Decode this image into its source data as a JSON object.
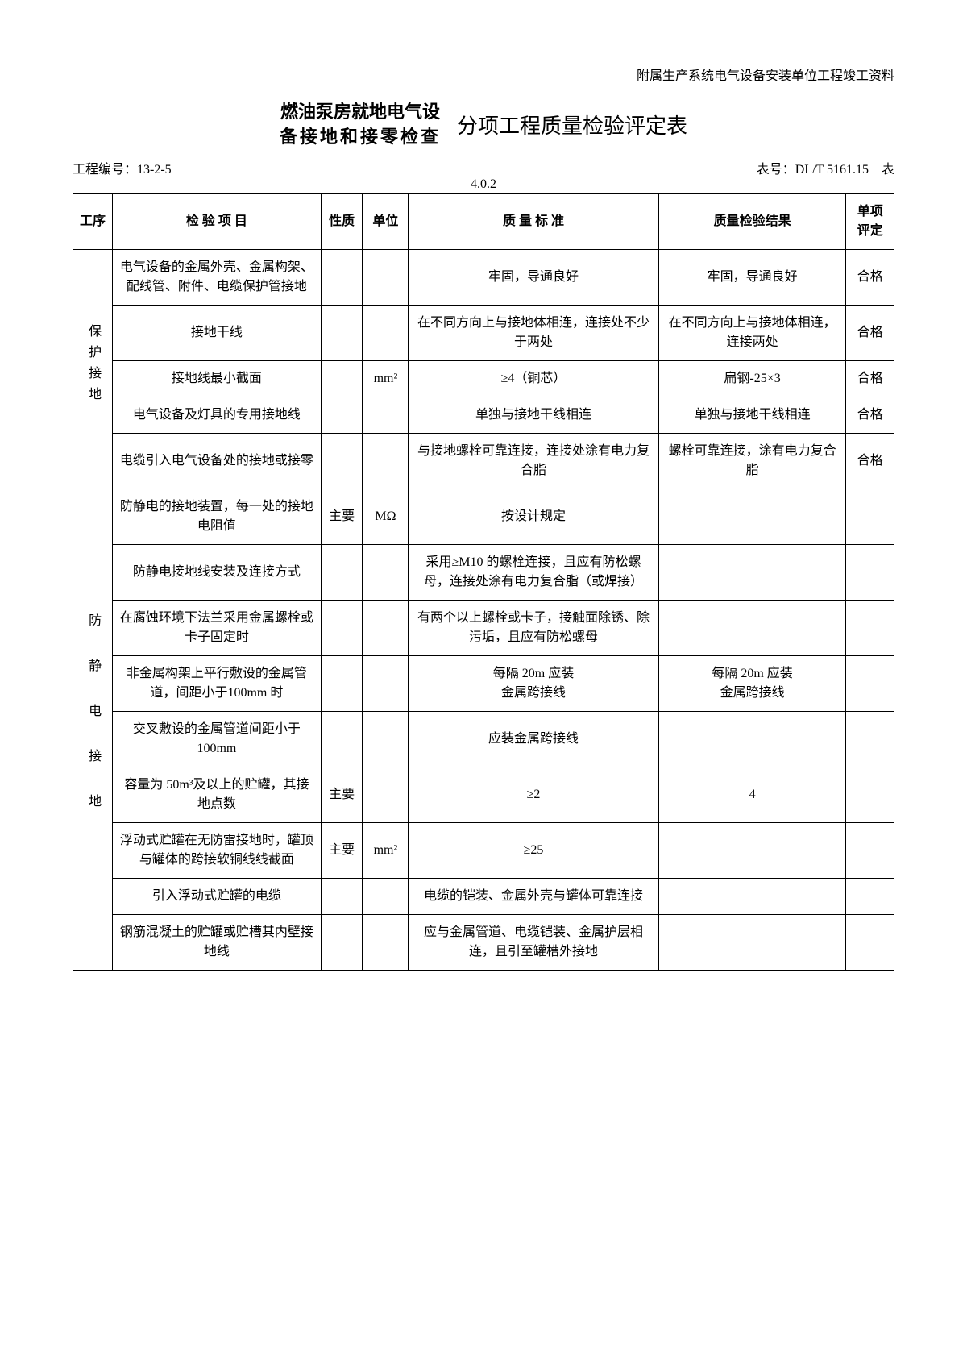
{
  "header_right": "附属生产系统电气设备安装单位工程竣工资料",
  "title_left_line1": "燃油泵房就地电气设",
  "title_left_line2": "备接地和接零检查",
  "title_right": "分项工程质量检验评定表",
  "project_no_label": "工程编号：13-2-5",
  "form_no_label": "表号：DL/T 5161.15　表",
  "table_ref": "4.0.2",
  "columns": {
    "seq": "工序",
    "item": "检 验 项 目",
    "nature": "性质",
    "unit": "单位",
    "standard": "质 量 标 准",
    "result": "质量检验结果",
    "eval": "单项评定"
  },
  "group1_label": "保护接地",
  "group2_label": "防静电接地",
  "rows": [
    {
      "item": "电气设备的金属外壳、金属构架、配线管、附件、电缆保护管接地",
      "nature": "",
      "unit": "",
      "standard": "牢固，导通良好",
      "result": "牢固，导通良好",
      "eval": "合格"
    },
    {
      "item": "接地干线",
      "nature": "",
      "unit": "",
      "standard": "在不同方向上与接地体相连，连接处不少于两处",
      "result": "在不同方向上与接地体相连，连接两处",
      "eval": "合格"
    },
    {
      "item": "接地线最小截面",
      "nature": "",
      "unit": "mm²",
      "standard": "≥4（铜芯）",
      "result": "扁钢-25×3",
      "eval": "合格"
    },
    {
      "item": "电气设备及灯具的专用接地线",
      "nature": "",
      "unit": "",
      "standard": "单独与接地干线相连",
      "result": "单独与接地干线相连",
      "eval": "合格"
    },
    {
      "item": "电缆引入电气设备处的接地或接零",
      "nature": "",
      "unit": "",
      "standard": "与接地螺栓可靠连接，连接处涂有电力复合脂",
      "result": "螺栓可靠连接，涂有电力复合脂",
      "eval": "合格"
    },
    {
      "item": "防静电的接地装置，每一处的接地电阻值",
      "nature": "主要",
      "unit": "MΩ",
      "standard": "按设计规定",
      "result": "",
      "eval": ""
    },
    {
      "item": "防静电接地线安装及连接方式",
      "nature": "",
      "unit": "",
      "standard": "采用≥M10 的螺栓连接，且应有防松螺母，连接处涂有电力复合脂（或焊接）",
      "result": "",
      "eval": ""
    },
    {
      "item": "在腐蚀环境下法兰采用金属螺栓或卡子固定时",
      "nature": "",
      "unit": "",
      "standard": "有两个以上螺栓或卡子，接触面除锈、除污垢，且应有防松螺母",
      "result": "",
      "eval": ""
    },
    {
      "item": "非金属构架上平行敷设的金属管道，间距小于100mm 时",
      "nature": "",
      "unit": "",
      "standard": "每隔 20m 应装\n金属跨接线",
      "result": "每隔 20m 应装\n金属跨接线",
      "eval": ""
    },
    {
      "item": "交叉敷设的金属管道间距小于100mm",
      "nature": "",
      "unit": "",
      "standard": "应装金属跨接线",
      "result": "",
      "eval": ""
    },
    {
      "item": "容量为 50m³及以上的贮罐，其接地点数",
      "nature": "主要",
      "unit": "",
      "standard": "≥2",
      "result": "4",
      "eval": ""
    },
    {
      "item": "浮动式贮罐在无防雷接地时，罐顶与罐体的跨接软铜线线截面",
      "nature": "主要",
      "unit": "mm²",
      "standard": "≥25",
      "result": "",
      "eval": ""
    },
    {
      "item": "引入浮动式贮罐的电缆",
      "nature": "",
      "unit": "",
      "standard": "电缆的铠装、金属外壳与罐体可靠连接",
      "result": "",
      "eval": ""
    },
    {
      "item": "钢筋混凝土的贮罐或贮槽其内壁接地线",
      "nature": "",
      "unit": "",
      "standard": "应与金属管道、电缆铠装、金属护层相连，且引至罐槽外接地",
      "result": "",
      "eval": ""
    }
  ]
}
